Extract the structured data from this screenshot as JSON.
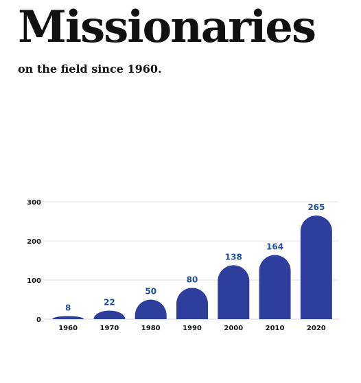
{
  "title": "Missionaries",
  "subtitle": "on the field since 1960.",
  "colors": {
    "bar": "#2E3E9C",
    "data_label": "#1F4FA0",
    "grid": "#E3E3E3",
    "baseline": "#D0D0D0"
  },
  "chart_data": {
    "type": "bar",
    "categories": [
      "1960",
      "1970",
      "1980",
      "1990",
      "2000",
      "2010",
      "2020"
    ],
    "values": [
      8,
      22,
      50,
      80,
      138,
      164,
      265
    ],
    "title": "",
    "xlabel": "",
    "ylabel": "",
    "ylim": [
      0,
      300
    ],
    "yticks": [
      0,
      100,
      200,
      300
    ],
    "grid": true,
    "bar_style": "rounded-top",
    "data_labels": true
  }
}
